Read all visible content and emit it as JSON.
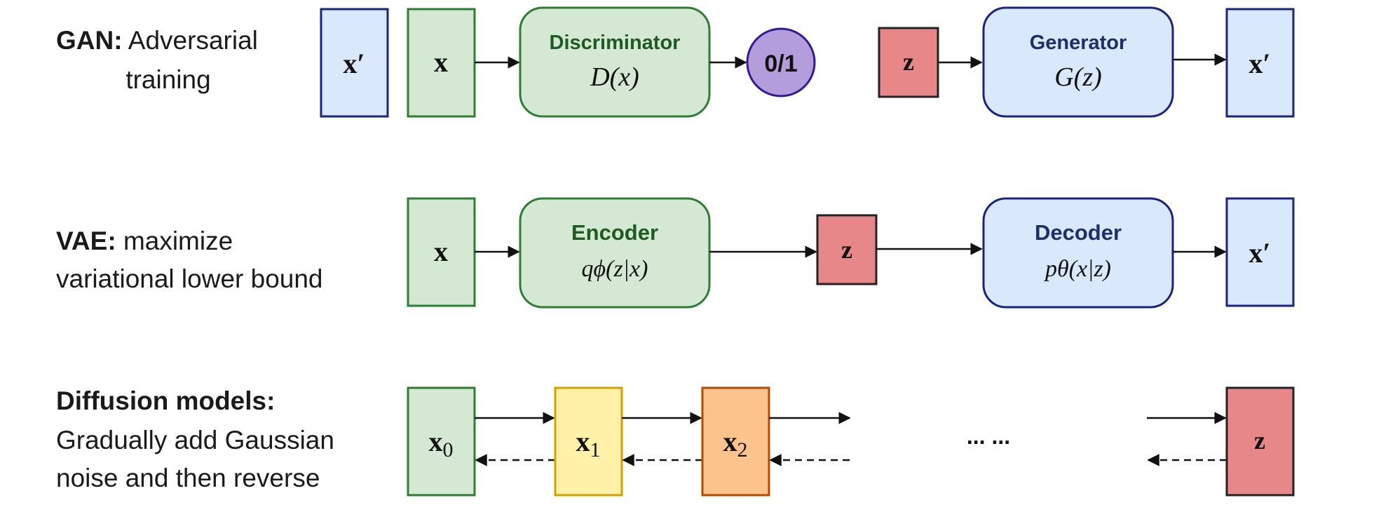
{
  "rows": {
    "gan": {
      "title": "GAN:",
      "desc_line1": "Adversarial",
      "desc_line2": "training",
      "x_prime_left": "x′",
      "x": "x",
      "discriminator": {
        "name": "Discriminator",
        "formula": "D(x)"
      },
      "output": "0/1",
      "z": "z",
      "generator": {
        "name": "Generator",
        "formula": "G(z)"
      },
      "x_prime_right": "x′"
    },
    "vae": {
      "title": "VAE:",
      "desc_line1": "maximize",
      "desc_line2": "variational lower bound",
      "x": "x",
      "encoder": {
        "name": "Encoder",
        "formula": "qϕ(z|x)"
      },
      "z": "z",
      "decoder": {
        "name": "Decoder",
        "formula": "pθ(x|z)"
      },
      "x_prime": "x′"
    },
    "diffusion": {
      "title": "Diffusion models:",
      "desc_line1": "Gradually add Gaussian",
      "desc_line2": "noise and then reverse",
      "x0": "x0",
      "x1": "x1",
      "x2": "x2",
      "ellipsis": "... ...",
      "z": "z"
    }
  },
  "colors": {
    "green_fill": "#d5e8d4",
    "green_stroke": "#2e7d32",
    "green_text": "#1e5b20",
    "blue_fill": "#dae8fc",
    "blue_stroke": "#1a237e",
    "blue_text": "#1b2f6b",
    "red_fill": "#e8878a",
    "red_stroke": "#222222",
    "purple_fill": "#b39ddb",
    "purple_stroke": "#311b92",
    "yellow_fill": "#fff2a8",
    "yellow_stroke": "#d4a000",
    "orange_fill": "#fbc48c",
    "orange_stroke": "#b74a00"
  }
}
